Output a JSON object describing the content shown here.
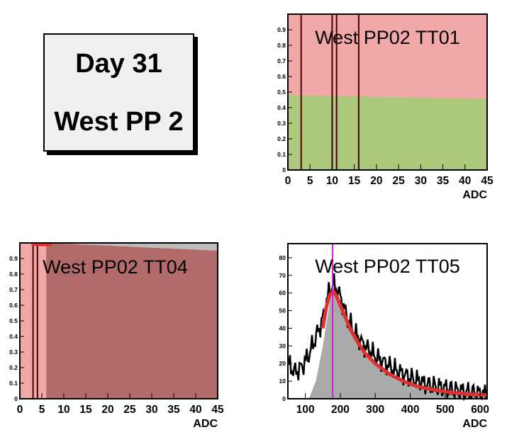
{
  "header": {
    "line1": "Day 31",
    "line2": "West PP 2"
  },
  "colors": {
    "red_fill": "#f0a8a8",
    "green_fill": "#acc87a",
    "dark_red": "#b36a6a",
    "gray": "#aaaaaa",
    "line": "#4a0000",
    "fit": "#e03030",
    "magenta": "#cc22cc"
  },
  "chart_data": [
    {
      "type": "area",
      "title": "West PP02 TT01",
      "xlabel": "ADC",
      "xlim": [
        0,
        45
      ],
      "ylim": [
        0,
        1
      ],
      "xticks": [
        0,
        5,
        10,
        15,
        20,
        25,
        30,
        35,
        40,
        45
      ],
      "yticks": [
        0,
        0.1,
        0.2,
        0.3,
        0.4,
        0.5,
        0.6,
        0.7,
        0.8,
        0.9
      ],
      "upper_fill": {
        "color": "red",
        "value": 1.0
      },
      "lower_fill": {
        "color": "green",
        "x": [
          0,
          45
        ],
        "y": [
          0.48,
          0.455
        ]
      },
      "vlines": [
        3,
        10,
        11,
        16
      ]
    },
    {
      "type": "area",
      "title": "West PP02 TT04",
      "xlabel": "ADC",
      "xlim": [
        0,
        45
      ],
      "ylim": [
        0,
        1
      ],
      "xticks": [
        0,
        5,
        10,
        15,
        20,
        25,
        30,
        35,
        40,
        45
      ],
      "yticks": [
        0,
        0.1,
        0.2,
        0.3,
        0.4,
        0.5,
        0.6,
        0.7,
        0.8,
        0.9
      ],
      "light_region": [
        0,
        7
      ],
      "dark_fill": {
        "x": [
          6,
          45
        ],
        "y": [
          1.0,
          0.95
        ]
      },
      "vlines": [
        3,
        4
      ],
      "red_marker": [
        3,
        7
      ]
    },
    {
      "type": "line",
      "title": "West PP02 TT05",
      "xlabel": "ADC",
      "xlim": [
        50,
        620
      ],
      "ylim": [
        0,
        88
      ],
      "xticks": [
        100,
        200,
        300,
        400,
        500,
        600
      ],
      "yticks": [
        0,
        10,
        20,
        30,
        40,
        50,
        60,
        70,
        80
      ],
      "peak_marker": 178,
      "histogram": {
        "x": [
          50,
          70,
          90,
          110,
          130,
          150,
          160,
          170,
          180,
          190,
          200,
          210,
          220,
          240,
          260,
          280,
          300,
          330,
          360,
          400,
          450,
          500,
          550,
          600,
          620
        ],
        "y": [
          20,
          15,
          18,
          25,
          35,
          45,
          55,
          62,
          65,
          62,
          58,
          52,
          46,
          38,
          32,
          28,
          24,
          20,
          16,
          12,
          8,
          6,
          4,
          3,
          2
        ]
      },
      "gray_fill": {
        "x": [
          110,
          130,
          150,
          170,
          180,
          190,
          200,
          220,
          240,
          260,
          280,
          300,
          330,
          360,
          400,
          450,
          500,
          550,
          600,
          620
        ],
        "y": [
          0,
          10,
          30,
          55,
          62,
          58,
          52,
          44,
          36,
          30,
          25,
          21,
          17,
          13,
          9,
          6,
          4,
          3,
          2,
          2
        ]
      },
      "fit": {
        "x": [
          150,
          160,
          170,
          180,
          190,
          200,
          215,
          230,
          250,
          270,
          300,
          340,
          380,
          420,
          470,
          520,
          570,
          620
        ],
        "y": [
          40,
          52,
          59,
          61,
          58,
          53,
          46,
          39,
          32,
          26,
          20,
          14,
          10,
          7,
          5,
          3.5,
          2.5,
          2
        ]
      }
    }
  ]
}
